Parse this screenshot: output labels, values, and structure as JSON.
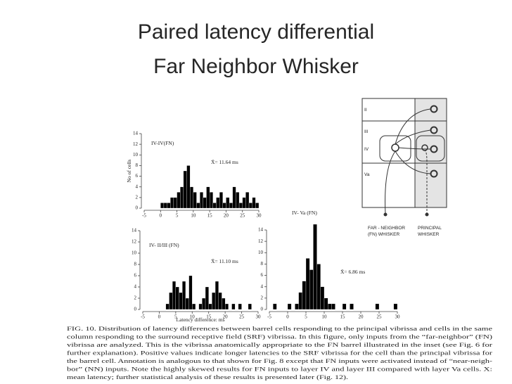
{
  "slide": {
    "title_lines": [
      "Paired latency differential",
      "Far Neighbor Whisker"
    ]
  },
  "chart_data": [
    {
      "type": "histogram",
      "annotation": "IV-IV(FN)",
      "mean_label": "X̄= 11.64 ms",
      "y_label": "No of cells",
      "color": "#000000",
      "bins": [
        -5,
        -4,
        -3,
        -2,
        -1,
        0,
        1,
        2,
        3,
        4,
        5,
        6,
        7,
        8,
        9,
        10,
        11,
        12,
        13,
        14,
        15,
        16,
        17,
        18,
        19,
        20,
        21,
        22,
        23,
        24,
        25,
        26,
        27,
        28,
        29,
        30
      ],
      "values": [
        0,
        0,
        0,
        0,
        0,
        1,
        1,
        1,
        2,
        2,
        3,
        4,
        7,
        8,
        4,
        3,
        1,
        3,
        2,
        4,
        3,
        1,
        2,
        3,
        1,
        2,
        1,
        4,
        3,
        1,
        2,
        3,
        1,
        2,
        1
      ],
      "xlim": [
        -5,
        30
      ],
      "ylim": [
        0,
        14
      ],
      "xticks": [
        -5,
        0,
        5,
        10,
        15,
        20,
        25,
        30
      ],
      "yticks": [
        0,
        2,
        4,
        6,
        8,
        10,
        12,
        14
      ]
    },
    {
      "type": "histogram",
      "annotation": "IV- II/III (FN)",
      "mean_label": "X̄= 11.10 ms",
      "x_label": "Latency difference: ms",
      "color": "#000000",
      "bins": [
        -5,
        -4,
        -3,
        -2,
        -1,
        0,
        1,
        2,
        3,
        4,
        5,
        6,
        7,
        8,
        9,
        10,
        11,
        12,
        13,
        14,
        15,
        16,
        17,
        18,
        19,
        20,
        21,
        22,
        23,
        24,
        25,
        26,
        27,
        28,
        29,
        30
      ],
      "values": [
        0,
        0,
        0,
        0,
        0,
        0,
        0,
        1,
        3,
        5,
        4,
        3,
        5,
        2,
        6,
        1,
        0,
        1,
        2,
        4,
        1,
        3,
        5,
        3,
        2,
        1,
        0,
        1,
        0,
        1,
        0,
        0,
        1,
        0,
        0
      ],
      "xlim": [
        -5,
        30
      ],
      "ylim": [
        0,
        14
      ],
      "xticks": [
        -5,
        0,
        5,
        10,
        15,
        20,
        25,
        30
      ],
      "yticks": [
        0,
        2,
        4,
        6,
        8,
        10,
        12,
        14
      ]
    },
    {
      "type": "histogram",
      "annotation": "IV- Va (FN)",
      "mean_label": "X̄= 6.86 ms",
      "color": "#000000",
      "bins": [
        -5,
        -4,
        -3,
        -2,
        -1,
        0,
        1,
        2,
        3,
        4,
        5,
        6,
        7,
        8,
        9,
        10,
        11,
        12,
        13,
        14,
        15,
        16,
        17,
        18,
        19,
        20,
        21,
        22,
        23,
        24,
        25,
        26,
        27,
        28,
        29,
        30
      ],
      "values": [
        0,
        1,
        0,
        0,
        0,
        1,
        0,
        1,
        3,
        5,
        9,
        7,
        15,
        8,
        4,
        2,
        1,
        1,
        0,
        0,
        1,
        0,
        1,
        0,
        0,
        0,
        0,
        0,
        0,
        1,
        0,
        0,
        0,
        0,
        1
      ],
      "xlim": [
        -5,
        30
      ],
      "ylim": [
        0,
        14
      ],
      "xticks": [
        -5,
        0,
        5,
        10,
        15,
        20,
        25,
        30
      ],
      "yticks": [
        0,
        2,
        4,
        6,
        8,
        10,
        12,
        14
      ]
    }
  ],
  "diagram": {
    "layers": [
      "II",
      "III",
      "IV",
      "Va"
    ],
    "far_neighbor_label": [
      "FAR - NEIGHBOR",
      "(FN) WHISKER"
    ],
    "principal_label": [
      "PRINCIPAL",
      "WHISKER"
    ]
  },
  "caption": {
    "lines": [
      "FIG. 10.  Distribution of latency differences between barrel cells responding to the principal vibrissa and cells in the same",
      "column responding to the surround receptive field (SRF) vibrissa. In this figure, only inputs from the “far-neighbor” (FN)",
      "vibrissa are analyzed. This is the vibrissa anatomically appropriate to the FN barrel illustrated in the inset (see Fig. 6 for",
      "further explanation). Positive values indicate longer latencies to the SRF vibrissa for the cell than the principal vibrissa for",
      "the barrel cell. Annotation is analogous to that shown for Fig. 8 except that FN inputs were activated instead of “near-neigh-",
      "bor” (NN) inputs. Note the highly skewed results for FN inputs to layer IV and layer III compared with layer Va cells. X:",
      "mean latency; further statistical analysis of these results is presented later (Fig. 12)."
    ]
  }
}
